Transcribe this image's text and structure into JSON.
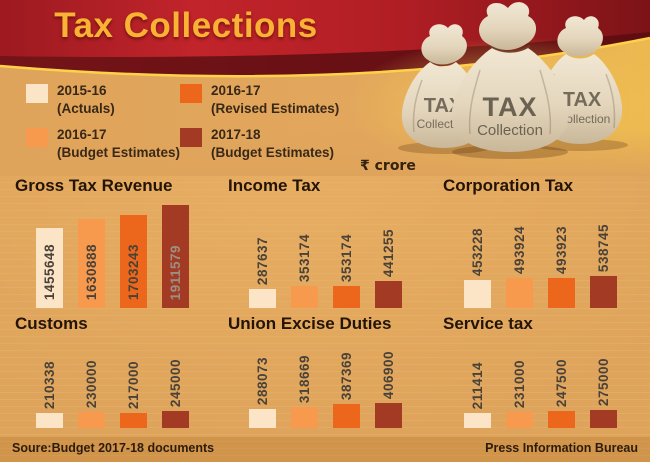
{
  "banner": {
    "title": "Tax Collections"
  },
  "unit_label": "₹ crore",
  "bar_colors": [
    "#fce5c7",
    "#f89a4e",
    "#ec671c",
    "#a23a24"
  ],
  "legend": {
    "items": [
      {
        "line1": "2015-16",
        "line2": "(Actuals)",
        "color": "#fce5c7"
      },
      {
        "line1": "2016-17",
        "line2": "(Revised Estimates)",
        "color": "#ec671c"
      },
      {
        "line1": "2016-17",
        "line2": "(Budget Estimates)",
        "color": "#f89a4e"
      },
      {
        "line1": "2017-18",
        "line2": "(Budget Estimates)",
        "color": "#a23a24"
      }
    ]
  },
  "bags": {
    "line1": "TAX",
    "line2": "Collection"
  },
  "chart_data": [
    {
      "type": "bar",
      "title": "Gross Tax Revenue",
      "categories": [
        "2015-16 (Actuals)",
        "2016-17 (Budget Estimates)",
        "2016-17 (Revised Estimates)",
        "2017-18 (Budget Estimates)"
      ],
      "values": [
        1455648,
        1630888,
        1703243,
        1911579
      ],
      "unit": "₹ crore"
    },
    {
      "type": "bar",
      "title": "Income Tax",
      "categories": [
        "2015-16 (Actuals)",
        "2016-17 (Budget Estimates)",
        "2016-17 (Revised Estimates)",
        "2017-18 (Budget Estimates)"
      ],
      "values": [
        287637,
        353174,
        353174,
        441255
      ],
      "unit": "₹ crore"
    },
    {
      "type": "bar",
      "title": "Corporation Tax",
      "categories": [
        "2015-16 (Actuals)",
        "2016-17 (Budget Estimates)",
        "2016-17 (Revised Estimates)",
        "2017-18 (Budget Estimates)"
      ],
      "values": [
        453228,
        493924,
        493923,
        538745
      ],
      "unit": "₹ crore"
    },
    {
      "type": "bar",
      "title": "Customs",
      "categories": [
        "2015-16 (Actuals)",
        "2016-17 (Budget Estimates)",
        "2016-17 (Revised Estimates)",
        "2017-18 (Budget Estimates)"
      ],
      "values": [
        210338,
        230000,
        217000,
        245000
      ],
      "unit": "₹ crore"
    },
    {
      "type": "bar",
      "title": "Union Excise Duties",
      "categories": [
        "2015-16 (Actuals)",
        "2016-17 (Budget Estimates)",
        "2016-17 (Revised Estimates)",
        "2017-18 (Budget Estimates)"
      ],
      "values": [
        288073,
        318669,
        387369,
        406900
      ],
      "unit": "₹ crore"
    },
    {
      "type": "bar",
      "title": "Service tax",
      "categories": [
        "2015-16 (Actuals)",
        "2016-17 (Budget Estimates)",
        "2016-17 (Revised Estimates)",
        "2017-18 (Budget Estimates)"
      ],
      "values": [
        211414,
        231000,
        247500,
        275000
      ],
      "unit": "₹ crore"
    }
  ],
  "footer": {
    "source": "Soure:Budget 2017-18 documents",
    "credit": "Press Information Bureau"
  }
}
